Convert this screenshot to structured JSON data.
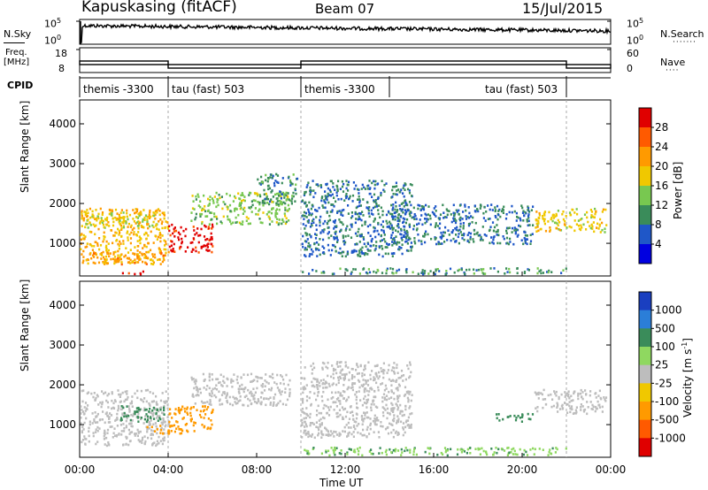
{
  "header": {
    "title": "Kapuskasing (fitACF)",
    "beam": "Beam 07",
    "date": "15/Jul/2015"
  },
  "left_labels": {
    "nsky": "N.Sky",
    "nsky_hi": "10^5",
    "nsky_lo": "10^0",
    "freq": "Freq.",
    "freq_unit": "[MHz]",
    "freq_hi": "18",
    "freq_lo": "8",
    "cpid": "CPID"
  },
  "right_labels": {
    "nsearch": "N.Search",
    "nsearch_hi": "10^5",
    "nsearch_lo": "10^0",
    "nave": "Nave",
    "nave_hi": "60",
    "nave_lo": "0"
  },
  "cpid_segments": [
    {
      "label": "themis -3300",
      "start": 0,
      "end": 4
    },
    {
      "label": "tau (fast) 503",
      "start": 4,
      "end": 10
    },
    {
      "label": "themis -3300",
      "start": 10,
      "end": 14
    },
    {
      "label": "tau (fast) 503",
      "start": 14,
      "end": 22
    }
  ],
  "power_colorbar": {
    "title": "Power [dB]",
    "ticks": [
      "28",
      "24",
      "20",
      "16",
      "12",
      "8",
      "4"
    ],
    "colors": [
      "#e00000",
      "#ff5a00",
      "#ff9a00",
      "#f0c800",
      "#78c850",
      "#3a8c5a",
      "#1f57c8",
      "#0000e0"
    ]
  },
  "velocity_colorbar": {
    "title": "Velocity [m s^-1]",
    "ticks": [
      "1000",
      "500",
      "100",
      "25",
      "-25",
      "-100",
      "-500",
      "-1000"
    ],
    "colors": [
      "#1a3fc0",
      "#2b7ed8",
      "#3a8c5a",
      "#8fd860",
      "#bdbdbd",
      "#f0c800",
      "#ff9a00",
      "#ff5a00",
      "#e00000"
    ]
  },
  "axes": {
    "ylabel": "Slant Range [km]",
    "yticks": [
      "4000",
      "3000",
      "2000",
      "1000"
    ],
    "xlabel": "Time UT",
    "xticks": [
      "00:00",
      "04:00",
      "08:00",
      "12:00",
      "16:00",
      "20:00",
      "00:00"
    ]
  },
  "chart_data": [
    {
      "type": "heatmap",
      "name": "Power",
      "xlabel": "Time UT",
      "ylabel": "Slant Range [km]",
      "xlim": [
        0,
        24
      ],
      "ylim": [
        180,
        4600
      ],
      "colorbar": "Power [dB]",
      "regions": [
        {
          "t0": 0.0,
          "t1": 4.0,
          "r0": 500,
          "r1": 1900,
          "power": 18
        },
        {
          "t0": 0.2,
          "t1": 3.5,
          "r0": 1400,
          "r1": 1800,
          "power": 14
        },
        {
          "t0": 0.3,
          "t1": 3.8,
          "r0": 500,
          "r1": 800,
          "power": 20
        },
        {
          "t0": 1.8,
          "t1": 3.0,
          "r0": 250,
          "r1": 330,
          "power": 28
        },
        {
          "t0": 4.0,
          "t1": 6.0,
          "r0": 800,
          "r1": 1500,
          "power": 28
        },
        {
          "t0": 5.0,
          "t1": 9.5,
          "r0": 1500,
          "r1": 2300,
          "power": 12
        },
        {
          "t0": 8.0,
          "t1": 9.8,
          "r0": 2000,
          "r1": 2800,
          "power": 8
        },
        {
          "t0": 10.0,
          "t1": 15.0,
          "r0": 700,
          "r1": 2600,
          "power": 6
        },
        {
          "t0": 10.0,
          "t1": 22.0,
          "r0": 250,
          "r1": 400,
          "power": 8
        },
        {
          "t0": 14.0,
          "t1": 20.5,
          "r0": 1000,
          "r1": 2000,
          "power": 6
        },
        {
          "t0": 20.5,
          "t1": 23.8,
          "r0": 1300,
          "r1": 1900,
          "power": 16
        }
      ]
    },
    {
      "type": "heatmap",
      "name": "Velocity",
      "xlabel": "Time UT",
      "ylabel": "Slant Range [km]",
      "xlim": [
        0,
        24
      ],
      "ylim": [
        180,
        4600
      ],
      "colorbar": "Velocity [m s^-1]",
      "regions": [
        {
          "t0": 0.0,
          "t1": 4.0,
          "r0": 500,
          "r1": 1900,
          "velocity": 0
        },
        {
          "t0": 1.8,
          "t1": 3.8,
          "r0": 1100,
          "r1": 1500,
          "velocity": 100
        },
        {
          "t0": 3.0,
          "t1": 4.0,
          "r0": 800,
          "r1": 1000,
          "velocity": -100
        },
        {
          "t0": 4.0,
          "t1": 6.0,
          "r0": 800,
          "r1": 1500,
          "velocity": -100
        },
        {
          "t0": 5.0,
          "t1": 9.5,
          "r0": 1500,
          "r1": 2300,
          "velocity": 0
        },
        {
          "t0": 10.0,
          "t1": 15.0,
          "r0": 700,
          "r1": 2600,
          "velocity": 0
        },
        {
          "t0": 10.0,
          "t1": 22.0,
          "r0": 250,
          "r1": 450,
          "velocity": 50
        },
        {
          "t0": 18.8,
          "t1": 20.5,
          "r0": 1100,
          "r1": 1300,
          "velocity": 100
        },
        {
          "t0": 20.5,
          "t1": 23.8,
          "r0": 1300,
          "r1": 1900,
          "velocity": 0
        }
      ]
    }
  ]
}
